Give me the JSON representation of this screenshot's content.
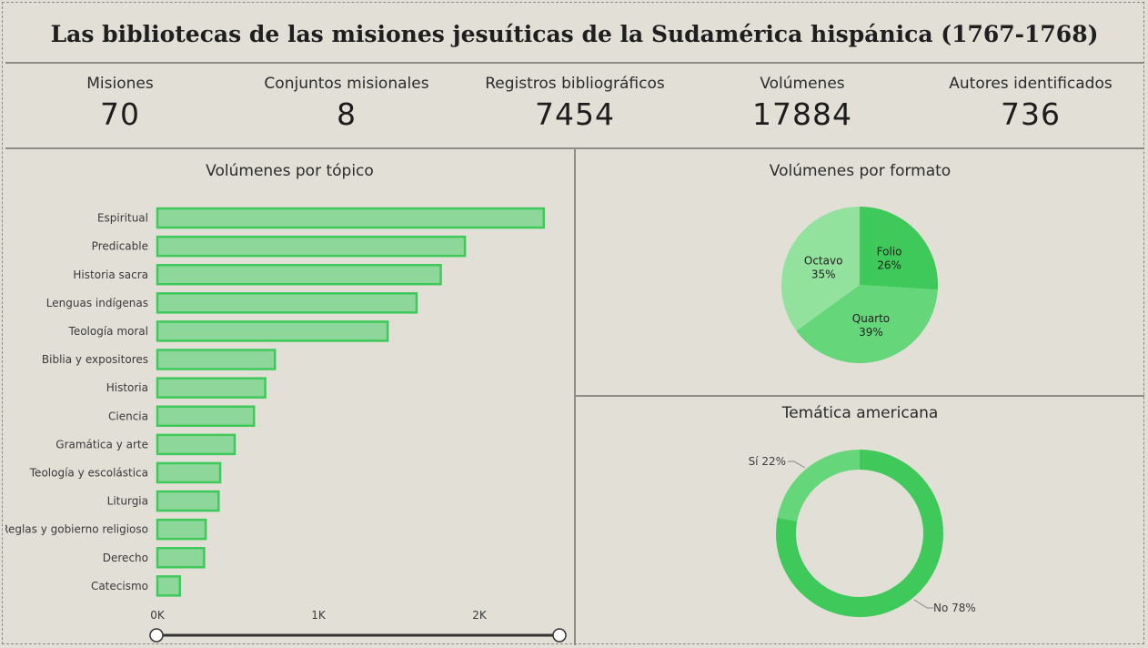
{
  "title": "Las bibliotecas de las misiones jesuíticas de la Sudamérica hispánica (1767-1768)",
  "kpis": [
    {
      "label": "Misiones",
      "value": "70"
    },
    {
      "label": "Conjuntos misionales",
      "value": "8"
    },
    {
      "label": "Registros bibliográficos",
      "value": "7454"
    },
    {
      "label": "Volúmenes",
      "value": "17884"
    },
    {
      "label": "Autores identificados",
      "value": "736"
    }
  ],
  "colors": {
    "background": "#e1dfd6",
    "bar_fill": "#8ed79a",
    "bar_stroke": "#3ec95a",
    "pie_folio": "#3ec95a",
    "pie_quarto": "#66d67a",
    "pie_octavo": "#92e29e"
  },
  "chart_data": [
    {
      "type": "bar",
      "orientation": "horizontal",
      "title": "Volúmenes por tópico",
      "categories": [
        "Espiritual",
        "Predicable",
        "Historia sacra",
        "Lenguas indígenas",
        "Teología moral",
        "Biblia y expositores",
        "Historia",
        "Ciencia",
        "Gramática y arte",
        "Teología y escolástica",
        "Liturgia",
        "Reglas y gobierno religioso",
        "Derecho",
        "Catecismo"
      ],
      "values": [
        2400,
        1910,
        1760,
        1610,
        1430,
        730,
        670,
        600,
        480,
        390,
        380,
        300,
        290,
        140
      ],
      "xlim": [
        0,
        2500
      ],
      "ticks": [
        {
          "v": 0,
          "label": "0K"
        },
        {
          "v": 1000,
          "label": "1K"
        },
        {
          "v": 2000,
          "label": "2K"
        }
      ],
      "grid": false,
      "has_range_slider": true
    },
    {
      "type": "pie",
      "title": "Volúmenes por formato",
      "slices": [
        {
          "label": "Folio",
          "pct_label": "26%",
          "value": 26
        },
        {
          "label": "Quarto",
          "pct_label": "39%",
          "value": 39
        },
        {
          "label": "Octavo",
          "pct_label": "35%",
          "value": 35
        }
      ]
    },
    {
      "type": "pie",
      "subtype": "donut",
      "title": "Temática americana",
      "slices": [
        {
          "label": "No",
          "pct_label": "No 78%",
          "value": 78
        },
        {
          "label": "Sí",
          "pct_label": "Sí 22%",
          "value": 22
        }
      ]
    }
  ]
}
